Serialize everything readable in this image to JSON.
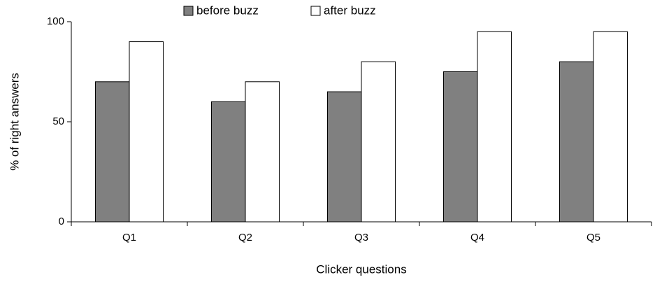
{
  "chart_data": {
    "type": "bar",
    "x_label": "Clicker questions",
    "y_label": "% of right answers",
    "categories": [
      "Q1",
      "Q2",
      "Q3",
      "Q4",
      "Q5"
    ],
    "series": [
      {
        "name": "before buzz",
        "color": "#808080",
        "values": [
          70,
          60,
          65,
          75,
          80
        ]
      },
      {
        "name": "after buzz",
        "color": "#ffffff",
        "values": [
          90,
          70,
          80,
          95,
          95
        ]
      }
    ],
    "ylim": [
      0,
      100
    ],
    "yticks": [
      0,
      50,
      100
    ],
    "grid": false,
    "legend": "top"
  }
}
